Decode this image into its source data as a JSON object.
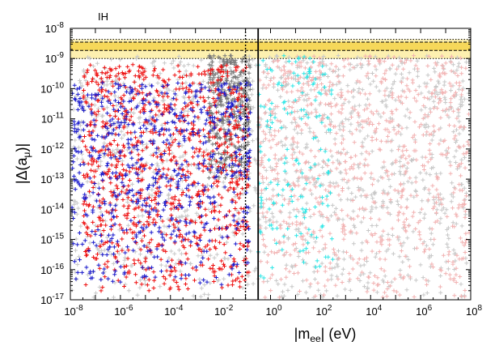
{
  "chart_data": {
    "type": "scatter",
    "panel_label": "IH",
    "xlabel": {
      "main": "|m",
      "sub": "ee",
      "tail": "| (eV)"
    },
    "ylabel": {
      "main": "|Δ(a",
      "sub": "μ",
      "tail": ")|"
    },
    "x_scale": "log",
    "y_scale": "log",
    "xlim": [
      1e-08,
      100000000.0
    ],
    "ylim": [
      1e-17,
      1e-08
    ],
    "x_ticks": [
      {
        "base": "10",
        "exp": "-8"
      },
      {
        "base": "10",
        "exp": "-6"
      },
      {
        "base": "10",
        "exp": "-4"
      },
      {
        "base": "10",
        "exp": "-2"
      },
      {
        "base": "10",
        "exp": "0"
      },
      {
        "base": "10",
        "exp": "2"
      },
      {
        "base": "10",
        "exp": "4"
      },
      {
        "base": "10",
        "exp": "6"
      },
      {
        "base": "10",
        "exp": "8"
      }
    ],
    "y_ticks": [
      {
        "base": "10",
        "exp": "-17"
      },
      {
        "base": "10",
        "exp": "-16"
      },
      {
        "base": "10",
        "exp": "-15"
      },
      {
        "base": "10",
        "exp": "-14"
      },
      {
        "base": "10",
        "exp": "-13"
      },
      {
        "base": "10",
        "exp": "-12"
      },
      {
        "base": "10",
        "exp": "-11"
      },
      {
        "base": "10",
        "exp": "-10"
      },
      {
        "base": "10",
        "exp": "-9"
      },
      {
        "base": "10",
        "exp": "-8"
      }
    ],
    "bands": [
      {
        "y_range": [
          1e-09,
          4.3e-09
        ],
        "color": "#fdf0b0",
        "style": "dotted-outer"
      },
      {
        "y_range": [
          1.85e-09,
          3.5e-09
        ],
        "color": "#f6d85a",
        "style": "dashed-inner"
      }
    ],
    "vertical_lines": [
      {
        "x": 0.1,
        "style": "dotted"
      },
      {
        "x": 0.32,
        "style": "solid"
      }
    ],
    "series_colors": {
      "light_gray": "#c8c8c8",
      "dark_gray": "#777777",
      "pink": "#f2b2b2",
      "cyan": "#2ee6e6",
      "red": "#ee1111",
      "blue": "#1a1acc"
    },
    "series": [
      {
        "color_key": "light_gray",
        "x_log_range": [
          -8,
          8
        ],
        "y_log_range": [
          -17,
          -8.9
        ],
        "count": 1300
      },
      {
        "color_key": "pink",
        "x_log_range": [
          -0.5,
          8
        ],
        "y_log_range": [
          -17,
          -8.9
        ],
        "count": 900
      },
      {
        "color_key": "dark_gray",
        "x_log_range": [
          -2.5,
          -0.8
        ],
        "y_log_range": [
          -13,
          -8.9
        ],
        "count": 350
      },
      {
        "color_key": "cyan",
        "x_log_range": [
          -0.5,
          2.5
        ],
        "y_log_range": [
          -16.3,
          -8.9
        ],
        "count": 160
      },
      {
        "color_key": "red",
        "x_log_range": [
          -7.5,
          -0.8
        ],
        "y_log_range": [
          -16.8,
          -9.2
        ],
        "count": 1000
      },
      {
        "color_key": "blue",
        "x_log_range": [
          -8,
          -0.8
        ],
        "y_log_range": [
          -16.5,
          -9.8
        ],
        "count": 700
      }
    ]
  }
}
